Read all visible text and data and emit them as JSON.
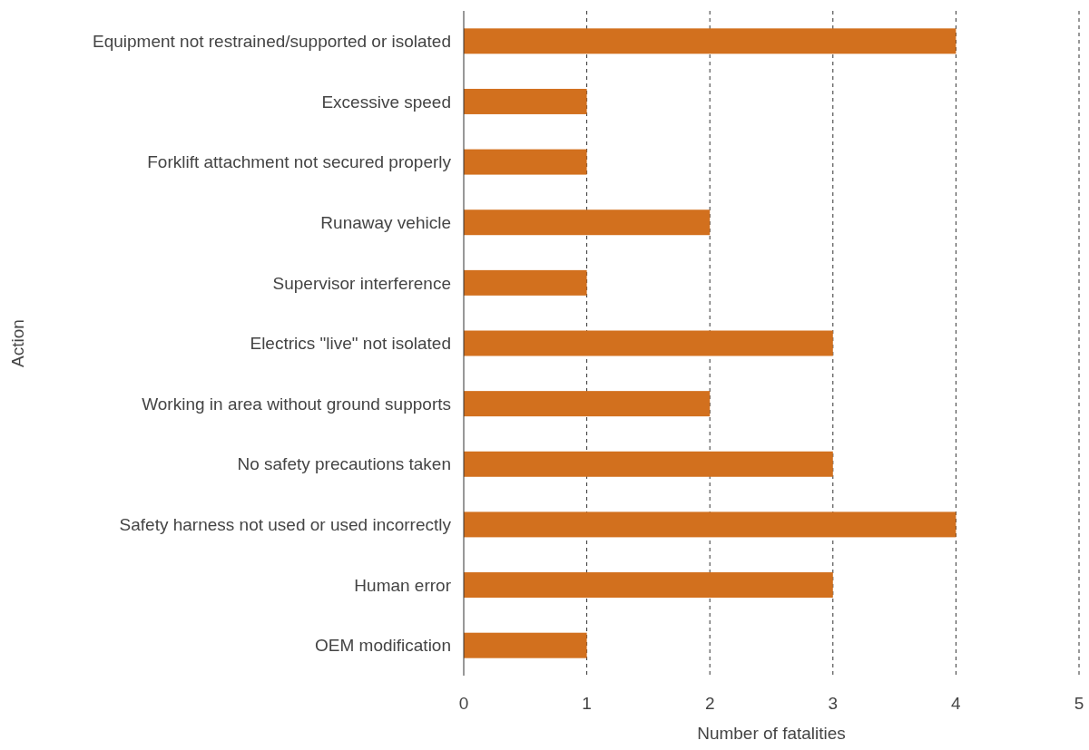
{
  "chart_data": {
    "type": "bar",
    "orientation": "horizontal",
    "xlabel": "Number of fatalities",
    "ylabel": "Action",
    "categories": [
      "Equipment not restrained/supported or isolated",
      "Excessive speed",
      "Forklift attachment not secured properly",
      "Runaway vehicle",
      "Supervisor interference",
      "Electrics \"live\" not isolated",
      "Working in area without ground supports",
      "No safety precautions taken",
      "Safety harness not used or used incorrectly",
      "Human error",
      "OEM modification"
    ],
    "values": [
      4,
      1,
      1,
      2,
      1,
      3,
      2,
      3,
      4,
      3,
      1
    ],
    "color": "#d2701e",
    "xlim": [
      0,
      5
    ],
    "xticks": [
      0,
      1,
      2,
      3,
      4,
      5
    ],
    "grid": "x"
  }
}
